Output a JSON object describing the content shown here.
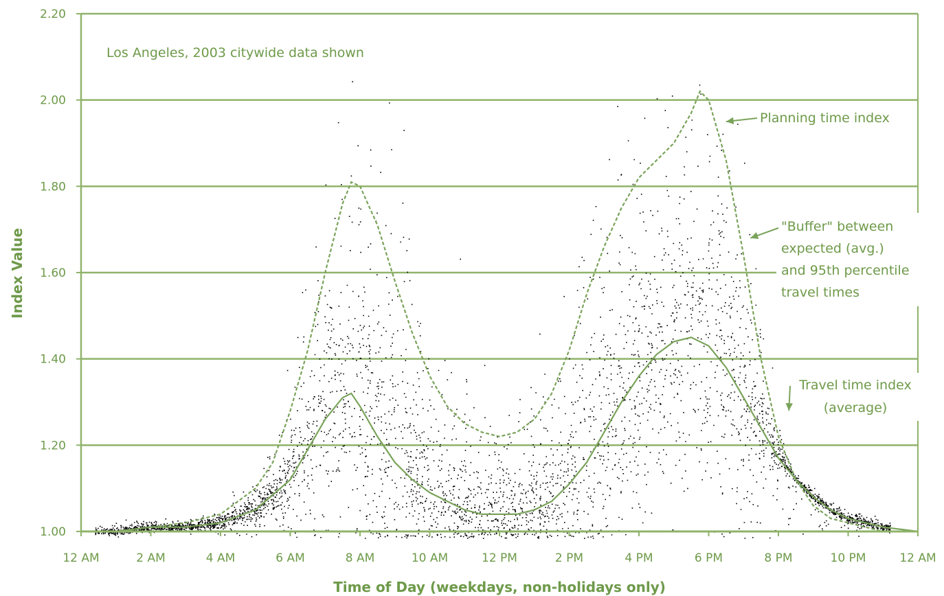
{
  "chart_data": {
    "type": "scatter",
    "note": "Los Angeles, 2003 citywide data shown",
    "xlabel": "Time of Day (weekdays, non-holidays only)",
    "ylabel": "Index Value",
    "xlim": [
      0,
      24
    ],
    "ylim": [
      1.0,
      2.2
    ],
    "y_ticks": [
      {
        "value": 1.0,
        "label": "1.00"
      },
      {
        "value": 1.2,
        "label": "1.20"
      },
      {
        "value": 1.4,
        "label": "1.40"
      },
      {
        "value": 1.6,
        "label": "1.60"
      },
      {
        "value": 1.8,
        "label": "1.80"
      },
      {
        "value": 2.0,
        "label": "2.00"
      },
      {
        "value": 2.2,
        "label": "2.20"
      }
    ],
    "x_ticks": [
      {
        "value": 0,
        "label": "12 AM"
      },
      {
        "value": 2,
        "label": "2 AM"
      },
      {
        "value": 4,
        "label": "4 AM"
      },
      {
        "value": 6,
        "label": "6 AM"
      },
      {
        "value": 8,
        "label": "8 AM"
      },
      {
        "value": 10,
        "label": "10 AM"
      },
      {
        "value": 12,
        "label": "12 PM"
      },
      {
        "value": 14,
        "label": "2 PM"
      },
      {
        "value": 16,
        "label": "4 PM"
      },
      {
        "value": 18,
        "label": "6 PM"
      },
      {
        "value": 20,
        "label": "8 PM"
      },
      {
        "value": 22,
        "label": "10 PM"
      },
      {
        "value": 24,
        "label": "12 AM"
      }
    ],
    "grid": "horizontal",
    "series": [
      {
        "name": "Travel time index (average)",
        "x": [
          0,
          1,
          2,
          3,
          4,
          5,
          6,
          6.5,
          7,
          7.5,
          7.75,
          8,
          8.5,
          9,
          9.5,
          10,
          10.5,
          11,
          11.5,
          12,
          12.5,
          13,
          13.5,
          14,
          14.5,
          15,
          15.5,
          16,
          16.5,
          17,
          17.5,
          18,
          18.5,
          19,
          19.5,
          20,
          20.5,
          21,
          21.5,
          22,
          22.5,
          23,
          24
        ],
        "y": [
          1.0,
          1.0,
          1.01,
          1.01,
          1.02,
          1.05,
          1.12,
          1.19,
          1.26,
          1.31,
          1.32,
          1.29,
          1.22,
          1.16,
          1.12,
          1.09,
          1.07,
          1.05,
          1.04,
          1.04,
          1.04,
          1.05,
          1.07,
          1.11,
          1.16,
          1.23,
          1.3,
          1.36,
          1.41,
          1.44,
          1.45,
          1.43,
          1.38,
          1.31,
          1.24,
          1.17,
          1.12,
          1.08,
          1.05,
          1.03,
          1.02,
          1.01,
          1.0
        ]
      },
      {
        "name": "Planning time index",
        "x": [
          0,
          1,
          2,
          3,
          4,
          5,
          5.5,
          6,
          6.5,
          7,
          7.5,
          7.75,
          8,
          8.5,
          9,
          9.5,
          10,
          10.5,
          11,
          11.5,
          12,
          12.5,
          13,
          13.5,
          14,
          14.5,
          15,
          15.5,
          16,
          16.5,
          17,
          17.5,
          17.75,
          18,
          18.5,
          19,
          19.5,
          20,
          20.5,
          21,
          21.5,
          22,
          22.5,
          23,
          24
        ],
        "y": [
          1.0,
          1.0,
          1.01,
          1.02,
          1.04,
          1.1,
          1.16,
          1.28,
          1.42,
          1.6,
          1.76,
          1.81,
          1.8,
          1.71,
          1.58,
          1.46,
          1.36,
          1.29,
          1.25,
          1.23,
          1.22,
          1.23,
          1.26,
          1.32,
          1.42,
          1.55,
          1.66,
          1.75,
          1.82,
          1.86,
          1.9,
          1.97,
          2.02,
          2.0,
          1.86,
          1.64,
          1.4,
          1.22,
          1.12,
          1.06,
          1.03,
          1.02,
          1.01,
          1.0,
          1.0
        ]
      }
    ],
    "annotations": [
      {
        "lines": [
          "Planning time index"
        ],
        "target": [
          18.5,
          1.95
        ]
      },
      {
        "lines": [
          "\"Buffer\" between",
          "expected (avg.)",
          "and 95th percentile",
          "travel times"
        ],
        "target": [
          19.2,
          1.68
        ]
      },
      {
        "lines": [
          "Travel time index",
          "(average)"
        ],
        "target": [
          20.3,
          1.28
        ]
      }
    ],
    "colors": {
      "axis": "#8fb36a",
      "grid": "#8fb36a",
      "text": "#6e9a4a",
      "line": "#7aa35a",
      "points": "#000000"
    }
  }
}
